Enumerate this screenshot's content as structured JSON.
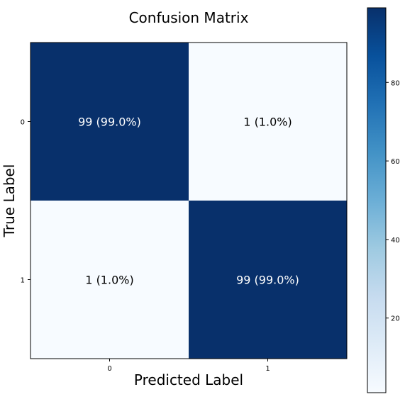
{
  "chart_data": {
    "type": "heatmap",
    "title": "Confusion Matrix",
    "xlabel": "Predicted Label",
    "ylabel": "True Label",
    "x_categories": [
      "0",
      "1"
    ],
    "y_categories": [
      "0",
      "1"
    ],
    "values": [
      [
        99,
        1
      ],
      [
        1,
        99
      ]
    ],
    "cell_labels": [
      [
        "99 (99.0%)",
        "1 (1.0%)"
      ],
      [
        "1 (1.0%)",
        "99 (99.0%)"
      ]
    ],
    "colormap": "Blues",
    "colors": {
      "low": "#f7fbff",
      "high": "#08306b"
    },
    "colorbar": {
      "range": [
        1,
        99
      ],
      "ticks": [
        20,
        40,
        60,
        80
      ],
      "tick_labels": [
        "20",
        "40",
        "60",
        "80"
      ]
    }
  }
}
